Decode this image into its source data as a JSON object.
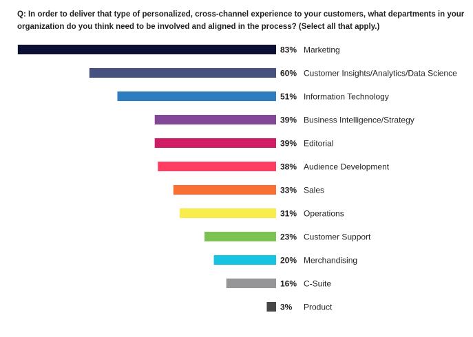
{
  "chart_data": {
    "type": "bar",
    "orientation": "horizontal",
    "title": "Q: In order to deliver that type of personalized, cross-channel experience to your customers, what departments in your organization do you think need to be involved and aligned in the process? (Select all that apply.)",
    "categories": [
      "Marketing",
      "Customer Insights/Analytics/Data Science",
      "Information Technology",
      "Business Intelligence/Strategy",
      "Editorial",
      "Audience Development",
      "Sales",
      "Operations",
      "Customer Support",
      "Merchandising",
      "C-Suite",
      "Product"
    ],
    "values": [
      83,
      60,
      51,
      39,
      39,
      38,
      33,
      31,
      23,
      20,
      16,
      3
    ],
    "value_labels": [
      "83%",
      "60%",
      "51%",
      "39%",
      "39%",
      "38%",
      "33%",
      "31%",
      "23%",
      "20%",
      "16%",
      "3%"
    ],
    "colors": [
      "#0a0f33",
      "#47507e",
      "#2e7dbf",
      "#824796",
      "#d11c66",
      "#ff3d63",
      "#f97132",
      "#f8ed4d",
      "#7dc352",
      "#17c3e0",
      "#969699",
      "#474747"
    ],
    "unit": "%",
    "xlim": [
      0,
      100
    ],
    "grid": false,
    "legend": "none"
  }
}
